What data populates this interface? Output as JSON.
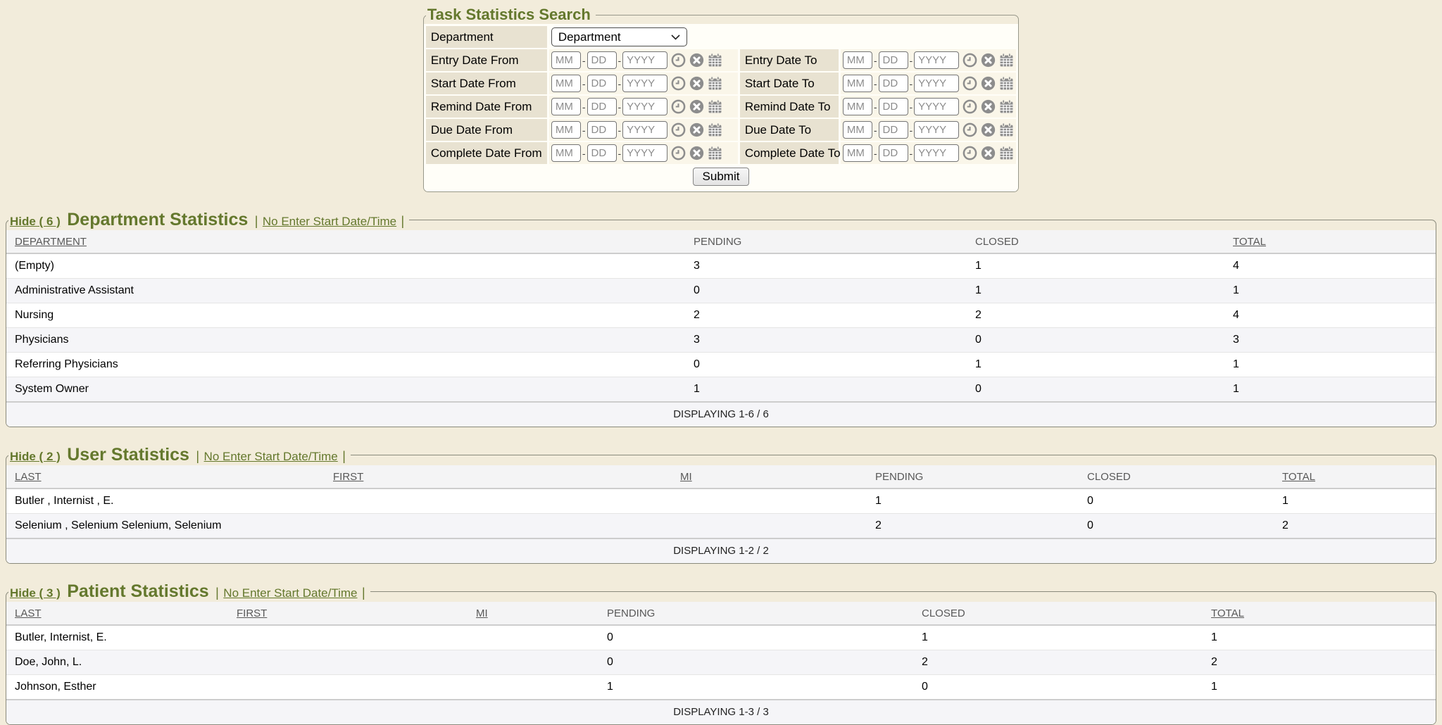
{
  "ui": {
    "pipe": "|"
  },
  "colors": {
    "accent_olive": "#64782d",
    "page_background": "#f2ecdb",
    "label_cell": "#e8e2d1",
    "input_cell": "#faf6e9",
    "header_row": "#f4f4f5",
    "stripe_row": "#f5f5f8",
    "icon_gray": "#8d8d8d"
  },
  "search_form": {
    "legend": "Task Statistics Search",
    "department_label": "Department",
    "department_value": "Department",
    "department_icon": "chevron-down-icon",
    "date_separator": "-",
    "date_placeholders": {
      "mm": "MM",
      "dd": "DD",
      "yyyy": "YYYY"
    },
    "row_icons": [
      "clock-icon",
      "clear-icon",
      "calendar-icon"
    ],
    "date_rows": [
      {
        "from_label": "Entry Date From",
        "to_label": "Entry Date To"
      },
      {
        "from_label": "Start Date From",
        "to_label": "Start Date To"
      },
      {
        "from_label": "Remind Date From",
        "to_label": "Remind Date To"
      },
      {
        "from_label": "Due Date From",
        "to_label": "Due Date To"
      },
      {
        "from_label": "Complete Date From",
        "to_label": "Complete Date To"
      }
    ],
    "submit_label": "Submit"
  },
  "sections": [
    {
      "id": "department",
      "hide_label": "Hide ( 6 )",
      "title": "Department Statistics",
      "subtitle_link": "No Enter Start Date/Time",
      "columns": [
        {
          "label": "DEPARTMENT",
          "sortable": true
        },
        {
          "label": "PENDING",
          "sortable": false
        },
        {
          "label": "CLOSED",
          "sortable": false
        },
        {
          "label": "TOTAL",
          "sortable": true
        }
      ],
      "rows": [
        [
          "(Empty)",
          "3",
          "1",
          "4"
        ],
        [
          "Administrative Assistant",
          "0",
          "1",
          "1"
        ],
        [
          "Nursing",
          "2",
          "2",
          "4"
        ],
        [
          "Physicians",
          "3",
          "0",
          "3"
        ],
        [
          "Referring Physicians",
          "0",
          "1",
          "1"
        ],
        [
          "System Owner",
          "1",
          "0",
          "1"
        ]
      ],
      "footer": "DISPLAYING 1-6 / 6"
    },
    {
      "id": "user",
      "hide_label": "Hide ( 2 )",
      "title": "User Statistics",
      "subtitle_link": "No Enter Start Date/Time",
      "columns": [
        {
          "label": "LAST",
          "sortable": true
        },
        {
          "label": "FIRST",
          "sortable": true
        },
        {
          "label": "MI",
          "sortable": true
        },
        {
          "label": "PENDING",
          "sortable": false
        },
        {
          "label": "CLOSED",
          "sortable": false
        },
        {
          "label": "TOTAL",
          "sortable": true
        }
      ],
      "rows": [
        [
          "Butler , Internist , E.",
          "",
          "",
          "1",
          "0",
          "1"
        ],
        [
          "Selenium , Selenium Selenium, Selenium",
          "",
          "",
          "2",
          "0",
          "2"
        ]
      ],
      "footer": "DISPLAYING 1-2 / 2"
    },
    {
      "id": "patient",
      "hide_label": "Hide ( 3 )",
      "title": "Patient Statistics",
      "subtitle_link": "No Enter Start Date/Time",
      "columns": [
        {
          "label": "LAST",
          "sortable": true
        },
        {
          "label": "FIRST",
          "sortable": true
        },
        {
          "label": "MI",
          "sortable": true
        },
        {
          "label": "PENDING",
          "sortable": false
        },
        {
          "label": "CLOSED",
          "sortable": false
        },
        {
          "label": "TOTAL",
          "sortable": true
        }
      ],
      "rows": [
        [
          "Butler, Internist, E.",
          "",
          "",
          "0",
          "1",
          "1"
        ],
        [
          "Doe, John, L.",
          "",
          "",
          "0",
          "2",
          "2"
        ],
        [
          "Johnson, Esther",
          "",
          "",
          "1",
          "0",
          "1"
        ]
      ],
      "footer": "DISPLAYING 1-3 / 3"
    }
  ]
}
